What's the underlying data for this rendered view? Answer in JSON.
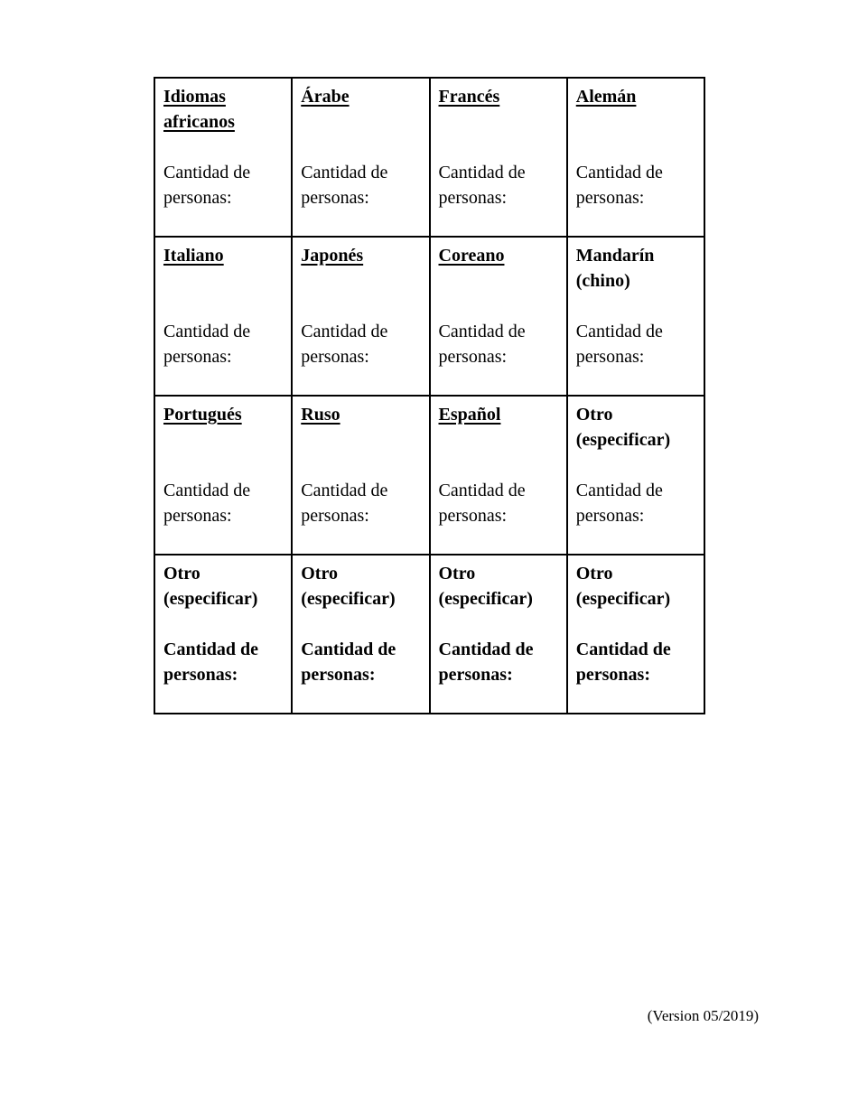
{
  "document": {
    "footer": "(Version 05/2019)"
  },
  "table": {
    "rows": [
      {
        "cells": [
          {
            "title": "Idiomas africanos",
            "label": "Cantidad de personas:"
          },
          {
            "title": "Árabe",
            "label": "Cantidad de personas:"
          },
          {
            "title": "Francés",
            "label": "Cantidad de personas:"
          },
          {
            "title": "Alemán",
            "label": "Cantidad de personas:"
          }
        ]
      },
      {
        "cells": [
          {
            "title": "Italiano",
            "label": "Cantidad de personas:"
          },
          {
            "title": "Japonés",
            "label": "Cantidad de personas:"
          },
          {
            "title": "Coreano",
            "label": "Cantidad de personas:"
          },
          {
            "title": "Mandarín (chino)",
            "label": "Cantidad de personas:"
          }
        ]
      },
      {
        "cells": [
          {
            "title": "Portugués",
            "label": "Cantidad de personas:"
          },
          {
            "title": "Ruso",
            "label": "Cantidad de personas:"
          },
          {
            "title": "Español",
            "label": "Cantidad de personas:"
          },
          {
            "title": "Otro (especificar)",
            "label": "Cantidad de personas:"
          }
        ]
      },
      {
        "cells": [
          {
            "title": "Otro (especificar)",
            "label": "Cantidad de personas:"
          },
          {
            "title": "Otro (especificar)",
            "label": "Cantidad de personas:"
          },
          {
            "title": "Otro (especificar)",
            "label": "Cantidad de personas:"
          },
          {
            "title": "Otro (especificar)",
            "label": "Cantidad de personas:"
          }
        ]
      }
    ]
  }
}
